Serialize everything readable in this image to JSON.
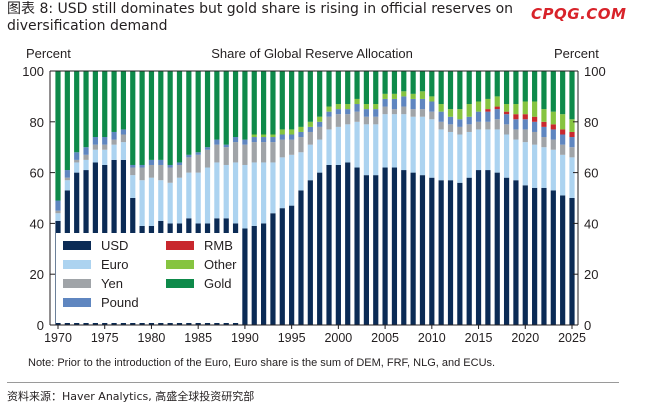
{
  "header": {
    "title": "图表 8: USD still dominates but gold share is rising in official reserves on diversification demand",
    "watermark": "CPQG.COM"
  },
  "footer": {
    "note": "Note: Prior to the introduction of the Euro, Euro share is the sum of DEM, FRF, NLG, and ECUs.",
    "source": "资料来源：Haver Analytics, 高盛全球投资研究部"
  },
  "colors": {
    "USD": "#0b2b55",
    "Euro": "#acd3f0",
    "Yen": "#a0a4a8",
    "Pound": "#5f86c0",
    "RMB": "#c8282e",
    "Other": "#86c440",
    "Gold": "#0e8a4a"
  },
  "chart_data": {
    "type": "bar",
    "stacked": true,
    "title": "Share of Global Reserve Allocation",
    "ylabel_left": "Percent",
    "ylabel_right": "Percent",
    "ylim": [
      0,
      100
    ],
    "yticks": [
      0,
      20,
      40,
      60,
      80,
      100
    ],
    "xticks": [
      1970,
      1975,
      1980,
      1985,
      1990,
      1995,
      2000,
      2005,
      2010,
      2015,
      2020,
      2025
    ],
    "grid": false,
    "legend_position": "bottom-left",
    "legend_order": [
      "USD",
      "RMB",
      "Euro",
      "Other",
      "Yen",
      "Gold",
      "Pound"
    ],
    "categories": [
      1970,
      1971,
      1972,
      1973,
      1974,
      1975,
      1976,
      1977,
      1978,
      1979,
      1980,
      1981,
      1982,
      1983,
      1984,
      1985,
      1986,
      1987,
      1988,
      1989,
      1990,
      1991,
      1992,
      1993,
      1994,
      1995,
      1996,
      1997,
      1998,
      1999,
      2000,
      2001,
      2002,
      2003,
      2004,
      2005,
      2006,
      2007,
      2008,
      2009,
      2010,
      2011,
      2012,
      2013,
      2014,
      2015,
      2016,
      2017,
      2018,
      2019,
      2020,
      2021,
      2022,
      2023,
      2024,
      2025
    ],
    "series": [
      {
        "name": "USD",
        "values": [
          41,
          53,
          60,
          61,
          64,
          63,
          65,
          65,
          50,
          39,
          39,
          41,
          40,
          40,
          42,
          40,
          40,
          42,
          42,
          40,
          38,
          39,
          40,
          44,
          46,
          47,
          53,
          57,
          60,
          63,
          63,
          64,
          62,
          59,
          59,
          62,
          62,
          61,
          60,
          59,
          58,
          57,
          57,
          56,
          58,
          61,
          61,
          60,
          58,
          57,
          55,
          54,
          54,
          53,
          51,
          50
        ]
      },
      {
        "name": "Euro",
        "values": [
          3,
          4,
          4,
          4,
          5,
          6,
          6,
          7,
          9,
          18,
          19,
          16,
          16,
          18,
          18,
          20,
          22,
          22,
          21,
          24,
          25,
          25,
          24,
          20,
          20,
          20,
          15,
          14,
          13,
          14,
          15,
          15,
          18,
          20,
          20,
          21,
          21,
          22,
          22,
          23,
          23,
          20,
          19,
          19,
          18,
          16,
          16,
          17,
          17,
          16,
          17,
          17,
          16,
          16,
          16,
          16
        ]
      },
      {
        "name": "Yen",
        "values": [
          1,
          1,
          1,
          2,
          2,
          2,
          2,
          3,
          3,
          5,
          5,
          6,
          6,
          5,
          6,
          7,
          7,
          7,
          7,
          8,
          8,
          8,
          8,
          8,
          7,
          6,
          6,
          5,
          5,
          5,
          5,
          4,
          4,
          3,
          3,
          3,
          2,
          3,
          3,
          3,
          3,
          3,
          3,
          3,
          3,
          3,
          3,
          4,
          4,
          4,
          5,
          5,
          4,
          4,
          4,
          4
        ]
      },
      {
        "name": "Pound",
        "values": [
          4,
          3,
          3,
          3,
          3,
          3,
          3,
          2,
          1,
          1,
          2,
          2,
          1,
          1,
          1,
          1,
          1,
          2,
          1,
          2,
          2,
          2,
          2,
          2,
          2,
          2,
          2,
          2,
          2,
          2,
          2,
          2,
          3,
          3,
          3,
          3,
          4,
          4,
          4,
          4,
          4,
          4,
          3,
          3,
          3,
          4,
          4,
          4,
          4,
          4,
          4,
          4,
          4,
          4,
          4,
          4
        ]
      },
      {
        "name": "RMB",
        "values": [
          0,
          0,
          0,
          0,
          0,
          0,
          0,
          0,
          0,
          0,
          0,
          0,
          0,
          0,
          0,
          0,
          0,
          0,
          0,
          0,
          0,
          0,
          0,
          0,
          0,
          0,
          0,
          0,
          0,
          0,
          0,
          0,
          0,
          0,
          0,
          0,
          0,
          0,
          0,
          0,
          0,
          0,
          0,
          0,
          0,
          0,
          1,
          1,
          1,
          2,
          2,
          2,
          2,
          2,
          2,
          2
        ]
      },
      {
        "name": "Other",
        "values": [
          0,
          0,
          0,
          0,
          0,
          0,
          0,
          0,
          0,
          0,
          0,
          0,
          0,
          0,
          0,
          0,
          0,
          0,
          0,
          0,
          0,
          1,
          1,
          1,
          2,
          2,
          2,
          2,
          2,
          2,
          2,
          2,
          2,
          2,
          2,
          2,
          2,
          2,
          2,
          3,
          2,
          3,
          3,
          4,
          5,
          4,
          4,
          4,
          3,
          4,
          5,
          6,
          5,
          5,
          6,
          5
        ]
      },
      {
        "name": "Gold",
        "values": [
          51,
          39,
          32,
          30,
          26,
          26,
          24,
          23,
          37,
          37,
          35,
          35,
          37,
          36,
          33,
          32,
          30,
          27,
          29,
          26,
          27,
          25,
          25,
          25,
          23,
          23,
          22,
          20,
          18,
          14,
          13,
          13,
          11,
          13,
          13,
          9,
          9,
          8,
          9,
          8,
          10,
          13,
          15,
          15,
          13,
          12,
          11,
          10,
          13,
          13,
          12,
          12,
          15,
          16,
          17,
          19
        ]
      }
    ]
  }
}
